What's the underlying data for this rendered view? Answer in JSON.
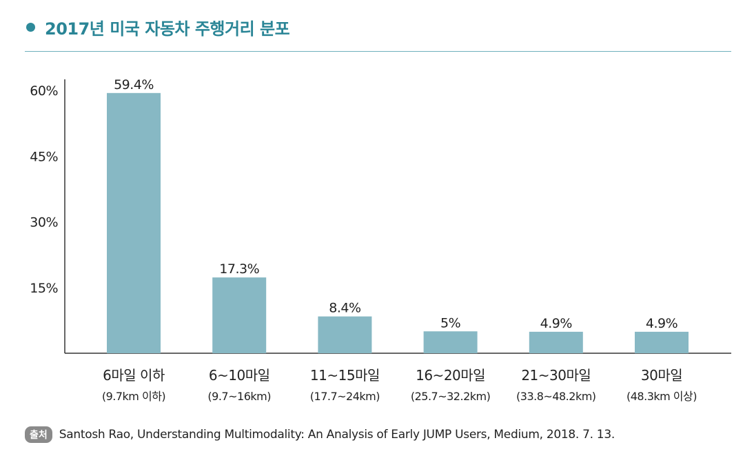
{
  "header": {
    "title": "2017년 미국 자동차 주행거리 분포"
  },
  "source": {
    "badge": "출처",
    "text": "Santosh Rao, Understanding Multimodality: An Analysis of Early JUMP Users, Medium, 2018. 7. 13."
  },
  "colors": {
    "bar": "#87b8c4",
    "accent": "#2a8596",
    "axis": "#333333"
  },
  "chart_data": {
    "type": "bar",
    "title": "2017년 미국 자동차 주행거리 분포",
    "categories": [
      "6마일 이하",
      "6~10마일",
      "11~15마일",
      "16~20마일",
      "21~30마일",
      "30마일"
    ],
    "sublabels": [
      "(9.7km 이하)",
      "(9.7~16km)",
      "(17.7~24km)",
      "(25.7~32.2km)",
      "(33.8~48.2km)",
      "(48.3km 이상)"
    ],
    "values": [
      59.4,
      17.3,
      8.4,
      5,
      4.9,
      4.9
    ],
    "value_labels": [
      "59.4%",
      "17.3%",
      "8.4%",
      "5%",
      "4.9%",
      "4.9%"
    ],
    "yticks": [
      15,
      30,
      45,
      60
    ],
    "ytick_labels": [
      "15%",
      "30%",
      "45%",
      "60%"
    ],
    "ylim": [
      0,
      60
    ],
    "xlabel": "",
    "ylabel": "",
    "grid": false,
    "legend": "none"
  }
}
